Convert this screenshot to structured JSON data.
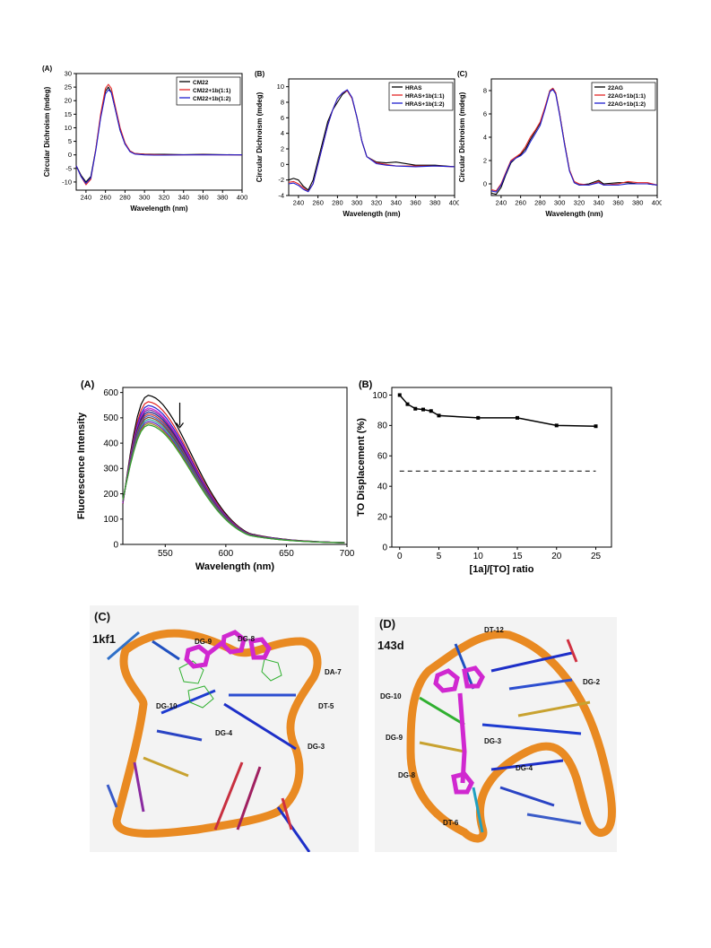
{
  "chart_data": [
    {
      "type": "line",
      "panel_label": "(A)",
      "xlabel": "Wavelength (nm)",
      "ylabel": "Circular Dichroism (mdeg)",
      "xlim": [
        230,
        400
      ],
      "ylim": [
        -13,
        30
      ],
      "xticks": [
        240,
        260,
        280,
        300,
        320,
        340,
        360,
        380,
        400
      ],
      "yticks": [
        -10,
        -5,
        0,
        5,
        10,
        15,
        20,
        25,
        30
      ],
      "legend_position": "top-right",
      "series": [
        {
          "name": "CM22",
          "color": "#000000",
          "points": [
            [
              230,
              -4
            ],
            [
              235,
              -7.5
            ],
            [
              240,
              -10
            ],
            [
              245,
              -8
            ],
            [
              250,
              2
            ],
            [
              255,
              14
            ],
            [
              260,
              23.5
            ],
            [
              263,
              25
            ],
            [
              266,
              23
            ],
            [
              270,
              17
            ],
            [
              275,
              9
            ],
            [
              280,
              4
            ],
            [
              285,
              1.5
            ],
            [
              290,
              0.5
            ],
            [
              300,
              0.3
            ],
            [
              310,
              0.2
            ],
            [
              320,
              0.2
            ],
            [
              340,
              0.1
            ],
            [
              360,
              0.2
            ],
            [
              380,
              0.1
            ],
            [
              400,
              0
            ]
          ]
        },
        {
          "name": "CM22+1b(1:1)",
          "color": "#e32626",
          "points": [
            [
              230,
              -4
            ],
            [
              235,
              -8
            ],
            [
              240,
              -11
            ],
            [
              245,
              -9
            ],
            [
              250,
              2
            ],
            [
              255,
              15
            ],
            [
              260,
              24.5
            ],
            [
              263,
              26
            ],
            [
              266,
              24.5
            ],
            [
              270,
              18
            ],
            [
              275,
              10
            ],
            [
              280,
              4.5
            ],
            [
              285,
              1.5
            ],
            [
              290,
              0.5
            ],
            [
              300,
              0.2
            ],
            [
              310,
              0.1
            ],
            [
              320,
              0
            ],
            [
              340,
              0
            ],
            [
              360,
              0.1
            ],
            [
              380,
              0
            ],
            [
              400,
              0
            ]
          ]
        },
        {
          "name": "CM22+1b(1:2)",
          "color": "#2020d0",
          "points": [
            [
              230,
              -4
            ],
            [
              235,
              -8
            ],
            [
              240,
              -10.5
            ],
            [
              245,
              -8.5
            ],
            [
              250,
              1.5
            ],
            [
              255,
              13.5
            ],
            [
              260,
              22.5
            ],
            [
              263,
              24
            ],
            [
              266,
              23
            ],
            [
              270,
              17
            ],
            [
              275,
              9
            ],
            [
              280,
              4
            ],
            [
              285,
              1.2
            ],
            [
              290,
              0.3
            ],
            [
              300,
              0
            ],
            [
              310,
              -0.1
            ],
            [
              320,
              -0.1
            ],
            [
              340,
              0
            ],
            [
              360,
              0
            ],
            [
              380,
              0
            ],
            [
              400,
              0
            ]
          ]
        }
      ]
    },
    {
      "type": "line",
      "panel_label": "(B)",
      "xlabel": "Wavelength (nm)",
      "ylabel": "Circular Dichroism (mdeg)",
      "xlim": [
        230,
        400
      ],
      "ylim": [
        -4,
        11
      ],
      "xticks": [
        240,
        260,
        280,
        300,
        320,
        340,
        360,
        380,
        400
      ],
      "yticks": [
        -4,
        -2,
        0,
        2,
        4,
        6,
        8,
        10
      ],
      "legend_position": "top-right",
      "series": [
        {
          "name": "HRAS",
          "color": "#000000",
          "points": [
            [
              230,
              -2
            ],
            [
              235,
              -1.8
            ],
            [
              240,
              -2
            ],
            [
              245,
              -2.8
            ],
            [
              250,
              -3.3
            ],
            [
              255,
              -2
            ],
            [
              260,
              0.5
            ],
            [
              265,
              3
            ],
            [
              270,
              5.5
            ],
            [
              275,
              7
            ],
            [
              280,
              8
            ],
            [
              285,
              9
            ],
            [
              290,
              9.5
            ],
            [
              295,
              8.5
            ],
            [
              300,
              6
            ],
            [
              305,
              3
            ],
            [
              310,
              1
            ],
            [
              320,
              0.3
            ],
            [
              330,
              0.2
            ],
            [
              340,
              0.3
            ],
            [
              360,
              -0.1
            ],
            [
              380,
              -0.1
            ],
            [
              400,
              -0.3
            ]
          ]
        },
        {
          "name": "HRAS+1b(1:1)",
          "color": "#e32626",
          "points": [
            [
              230,
              -2.3
            ],
            [
              235,
              -2.2
            ],
            [
              240,
              -2.5
            ],
            [
              245,
              -3
            ],
            [
              250,
              -3.5
            ],
            [
              255,
              -2.5
            ],
            [
              260,
              0
            ],
            [
              265,
              2.5
            ],
            [
              270,
              5
            ],
            [
              275,
              7
            ],
            [
              280,
              8.5
            ],
            [
              285,
              9.2
            ],
            [
              290,
              9.5
            ],
            [
              295,
              8.5
            ],
            [
              300,
              6
            ],
            [
              305,
              3
            ],
            [
              310,
              1
            ],
            [
              320,
              0.2
            ],
            [
              330,
              0
            ],
            [
              340,
              -0.2
            ],
            [
              360,
              -0.2
            ],
            [
              380,
              -0.2
            ],
            [
              400,
              -0.3
            ]
          ]
        },
        {
          "name": "HRAS+1b(1:2)",
          "color": "#2020d0",
          "points": [
            [
              230,
              -2.5
            ],
            [
              235,
              -2.4
            ],
            [
              240,
              -2.7
            ],
            [
              245,
              -3.2
            ],
            [
              250,
              -3.5
            ],
            [
              255,
              -2.5
            ],
            [
              260,
              0
            ],
            [
              265,
              2.5
            ],
            [
              270,
              5
            ],
            [
              275,
              7
            ],
            [
              280,
              8.5
            ],
            [
              285,
              9.2
            ],
            [
              290,
              9.6
            ],
            [
              295,
              8.6
            ],
            [
              300,
              6
            ],
            [
              305,
              3
            ],
            [
              310,
              1
            ],
            [
              320,
              0.1
            ],
            [
              330,
              -0.1
            ],
            [
              340,
              -0.2
            ],
            [
              360,
              -0.3
            ],
            [
              380,
              -0.2
            ],
            [
              400,
              -0.3
            ]
          ]
        }
      ]
    },
    {
      "type": "line",
      "panel_label": "(C)",
      "xlabel": "Wavelength (nm)",
      "ylabel": "Circular Dichroism (mdeg)",
      "xlim": [
        230,
        400
      ],
      "ylim": [
        -1,
        9
      ],
      "xticks": [
        240,
        260,
        280,
        300,
        320,
        340,
        360,
        380,
        400
      ],
      "yticks": [
        0,
        2,
        4,
        6,
        8
      ],
      "legend_position": "top-right",
      "series": [
        {
          "name": "22AG",
          "color": "#000000",
          "points": [
            [
              230,
              -0.8
            ],
            [
              235,
              -0.9
            ],
            [
              240,
              -0.3
            ],
            [
              245,
              0.8
            ],
            [
              250,
              1.8
            ],
            [
              255,
              2.2
            ],
            [
              260,
              2.5
            ],
            [
              265,
              3
            ],
            [
              270,
              3.8
            ],
            [
              275,
              4.5
            ],
            [
              280,
              5.2
            ],
            [
              285,
              6.5
            ],
            [
              290,
              8
            ],
            [
              293,
              8.2
            ],
            [
              296,
              7.8
            ],
            [
              300,
              6
            ],
            [
              305,
              3.5
            ],
            [
              310,
              1.2
            ],
            [
              315,
              0.1
            ],
            [
              320,
              -0.1
            ],
            [
              330,
              0
            ],
            [
              340,
              0.3
            ],
            [
              345,
              0
            ],
            [
              360,
              0.1
            ],
            [
              370,
              0.1
            ],
            [
              380,
              0
            ],
            [
              390,
              0
            ],
            [
              400,
              -0.1
            ]
          ]
        },
        {
          "name": "22AG+1b(1:1)",
          "color": "#e32626",
          "points": [
            [
              230,
              -0.5
            ],
            [
              235,
              -0.6
            ],
            [
              240,
              0
            ],
            [
              245,
              1
            ],
            [
              250,
              2
            ],
            [
              255,
              2.3
            ],
            [
              260,
              2.6
            ],
            [
              265,
              3.2
            ],
            [
              270,
              4
            ],
            [
              275,
              4.6
            ],
            [
              280,
              5.3
            ],
            [
              285,
              6.6
            ],
            [
              290,
              8
            ],
            [
              293,
              8.2
            ],
            [
              296,
              7.8
            ],
            [
              300,
              6
            ],
            [
              305,
              3.5
            ],
            [
              310,
              1.2
            ],
            [
              315,
              0.2
            ],
            [
              320,
              0
            ],
            [
              330,
              -0.1
            ],
            [
              340,
              0.2
            ],
            [
              345,
              -0.1
            ],
            [
              360,
              0
            ],
            [
              370,
              0.2
            ],
            [
              380,
              0.1
            ],
            [
              390,
              0.1
            ],
            [
              400,
              -0.1
            ]
          ]
        },
        {
          "name": "22AG+1b(1:2)",
          "color": "#2020d0",
          "points": [
            [
              230,
              -0.6
            ],
            [
              235,
              -0.7
            ],
            [
              240,
              -0.1
            ],
            [
              245,
              0.9
            ],
            [
              250,
              1.9
            ],
            [
              255,
              2.2
            ],
            [
              260,
              2.4
            ],
            [
              265,
              2.8
            ],
            [
              270,
              3.6
            ],
            [
              275,
              4.3
            ],
            [
              280,
              5
            ],
            [
              285,
              6.4
            ],
            [
              290,
              7.9
            ],
            [
              293,
              8.1
            ],
            [
              296,
              7.7
            ],
            [
              300,
              5.9
            ],
            [
              305,
              3.4
            ],
            [
              310,
              1.1
            ],
            [
              315,
              0.1
            ],
            [
              320,
              -0.1
            ],
            [
              330,
              -0.1
            ],
            [
              340,
              0.1
            ],
            [
              345,
              -0.1
            ],
            [
              360,
              -0.1
            ],
            [
              370,
              0
            ],
            [
              380,
              0
            ],
            [
              390,
              0
            ],
            [
              400,
              -0.1
            ]
          ]
        }
      ]
    },
    {
      "type": "line",
      "panel_label": "(A)",
      "xlabel": "Wavelength (nm)",
      "ylabel": "Fluorescence Intensity",
      "xlim": [
        515,
        700
      ],
      "ylim": [
        0,
        620
      ],
      "xticks": [
        550,
        600,
        650,
        700
      ],
      "yticks": [
        0,
        100,
        200,
        300,
        400,
        500,
        600
      ],
      "annotation": "downward arrow indicating decreasing intensity",
      "peak_x": 535,
      "peak_values": [
        585,
        560,
        545,
        535,
        528,
        520,
        512,
        505,
        498,
        490,
        482,
        475,
        468
      ],
      "series_colors": [
        "#000000",
        "#e32626",
        "#2020d0",
        "#d020d0",
        "#7a2aa0",
        "#10208a",
        "#c03030",
        "#4060c0",
        "#804020",
        "#20a0a0",
        "#6020c0",
        "#a08020",
        "#30a030"
      ]
    },
    {
      "type": "line",
      "panel_label": "(B)",
      "xlabel": "[1a]/[TO] ratio",
      "ylabel": "TO Displacement (%)",
      "xlim": [
        -1,
        27
      ],
      "ylim": [
        0,
        105
      ],
      "xticks": [
        0,
        5,
        10,
        15,
        20,
        25
      ],
      "yticks": [
        0,
        20,
        40,
        60,
        80,
        100
      ],
      "reference_line": 50,
      "series": [
        {
          "points": [
            [
              0,
              100
            ],
            [
              1,
              94
            ],
            [
              2,
              91
            ],
            [
              3,
              90.5
            ],
            [
              4,
              89.5
            ],
            [
              5,
              86.5
            ],
            [
              10,
              85
            ],
            [
              15,
              85
            ],
            [
              20,
              80
            ],
            [
              25,
              79.5
            ]
          ]
        }
      ]
    }
  ],
  "structures": [
    {
      "panel_label": "(C)",
      "pdb_id": "1kf1",
      "residues": [
        "DG-9",
        "DG-8",
        "DA-7",
        "DG-10",
        "DT-5",
        "DG-4",
        "DG-3"
      ]
    },
    {
      "panel_label": "(D)",
      "pdb_id": "143d",
      "residues": [
        "DT-12",
        "DG-10",
        "DG-2",
        "DG-9",
        "DG-3",
        "DG-8",
        "DG-4",
        "DT-6"
      ]
    }
  ]
}
